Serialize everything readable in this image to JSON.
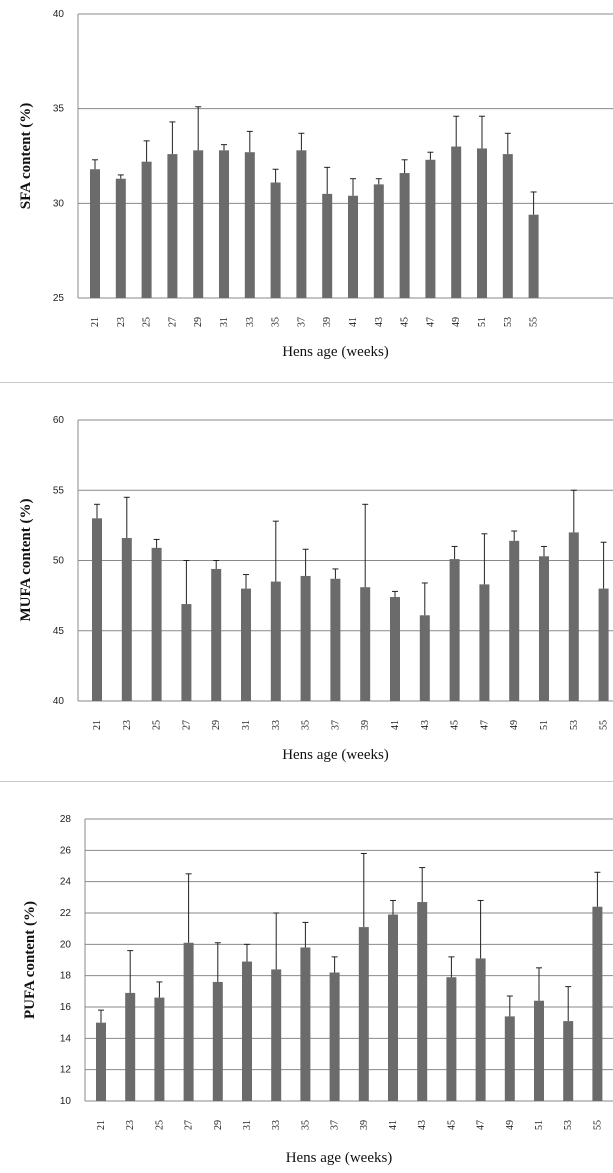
{
  "charts": [
    {
      "type": "bar",
      "ylabel": "SFA content (%)",
      "xlabel": "Hens age (weeks)",
      "ylim": [
        25,
        40
      ],
      "yticks": [
        25,
        30,
        35,
        40
      ],
      "categories": [
        "21",
        "23",
        "25",
        "27",
        "29",
        "31",
        "33",
        "35",
        "37",
        "39",
        "41",
        "43",
        "45",
        "47",
        "49",
        "51",
        "53",
        "55"
      ],
      "values": [
        31.8,
        31.3,
        32.2,
        32.6,
        32.8,
        32.8,
        32.7,
        31.1,
        32.8,
        30.5,
        30.4,
        31.0,
        31.6,
        32.3,
        33.0,
        32.9,
        32.6,
        29.4
      ],
      "errors": [
        0.5,
        0.2,
        1.1,
        1.7,
        2.3,
        0.3,
        1.1,
        0.7,
        0.9,
        1.4,
        0.9,
        0.3,
        0.7,
        0.4,
        1.6,
        1.7,
        1.1,
        1.2
      ],
      "gridlines": true,
      "bar_color": "#6b6b6b"
    },
    {
      "type": "bar",
      "ylabel": "MUFA content (%)",
      "xlabel": "Hens age (weeks)",
      "ylim": [
        40,
        60
      ],
      "yticks": [
        40,
        45,
        50,
        55,
        60
      ],
      "categories": [
        "21",
        "23",
        "25",
        "27",
        "29",
        "31",
        "33",
        "35",
        "37",
        "39",
        "41",
        "43",
        "45",
        "47",
        "49",
        "51",
        "53",
        "55"
      ],
      "values": [
        53.0,
        51.6,
        50.9,
        46.9,
        49.4,
        48.0,
        48.5,
        48.9,
        48.7,
        48.1,
        47.4,
        46.1,
        50.1,
        48.3,
        51.4,
        50.3,
        52.0,
        48.0
      ],
      "errors": [
        1.0,
        2.9,
        0.6,
        3.1,
        0.6,
        1.0,
        4.3,
        1.9,
        0.7,
        5.9,
        0.4,
        2.3,
        0.9,
        3.6,
        0.7,
        0.7,
        3.0,
        3.3
      ],
      "gridlines": true,
      "bar_color": "#6b6b6b"
    },
    {
      "type": "bar",
      "ylabel": "PUFA content (%)",
      "xlabel": "Hens age (weeks)",
      "ylim": [
        10,
        28
      ],
      "yticks": [
        10,
        12,
        14,
        16,
        18,
        20,
        22,
        24,
        26,
        28
      ],
      "categories": [
        "21",
        "23",
        "25",
        "27",
        "29",
        "31",
        "33",
        "35",
        "37",
        "39",
        "41",
        "43",
        "45",
        "47",
        "49",
        "51",
        "53",
        "55"
      ],
      "values": [
        15.0,
        16.9,
        16.6,
        20.1,
        17.6,
        18.9,
        18.4,
        19.8,
        18.2,
        21.1,
        21.9,
        22.7,
        17.9,
        19.1,
        15.4,
        16.4,
        15.1,
        22.4
      ],
      "errors": [
        0.8,
        2.7,
        1.0,
        4.4,
        2.5,
        1.1,
        3.6,
        1.6,
        1.0,
        4.7,
        0.9,
        2.2,
        1.3,
        3.7,
        1.3,
        2.1,
        2.2,
        2.2
      ],
      "gridlines": true,
      "bar_color": "#6b6b6b"
    }
  ]
}
